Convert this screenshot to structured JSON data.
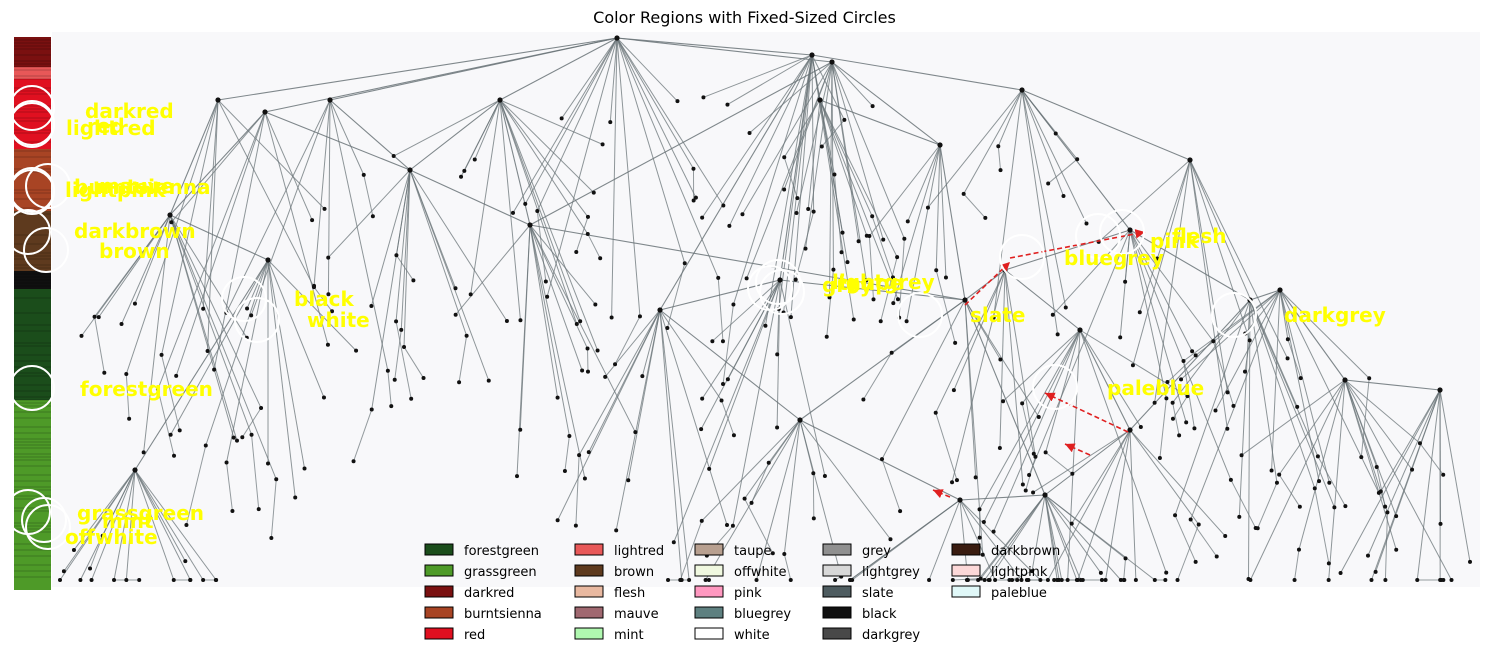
{
  "chart_data": {
    "type": "network",
    "title": "Color Regions with Fixed-Sized Circles",
    "regions": [
      {
        "name": "darkred"
      },
      {
        "name": "red"
      },
      {
        "name": "lightred"
      },
      {
        "name": "burntsienna"
      },
      {
        "name": "mauve"
      },
      {
        "name": "lightpink"
      },
      {
        "name": "darkbrown"
      },
      {
        "name": "brown"
      },
      {
        "name": "black"
      },
      {
        "name": "white"
      },
      {
        "name": "forestgreen"
      },
      {
        "name": "grassgreen"
      },
      {
        "name": "mint"
      },
      {
        "name": "offwhite"
      },
      {
        "name": "lightgrey"
      },
      {
        "name": "grey"
      },
      {
        "name": "taupe"
      },
      {
        "name": "slate"
      },
      {
        "name": "bluegrey"
      },
      {
        "name": "pink"
      },
      {
        "name": "flesh"
      },
      {
        "name": "darkgrey"
      },
      {
        "name": "paleblue"
      }
    ],
    "legend": {
      "placement": "bottom-center",
      "columns": 5,
      "entries": [
        {
          "label": "forestgreen",
          "color": "#1b4d1b"
        },
        {
          "label": "grassgreen",
          "color": "#4e9a28"
        },
        {
          "label": "darkred",
          "color": "#7a1010"
        },
        {
          "label": "burntsienna",
          "color": "#a84424"
        },
        {
          "label": "red",
          "color": "#e01020"
        },
        {
          "label": "lightred",
          "color": "#e85858"
        },
        {
          "label": "brown",
          "color": "#5e3a1e"
        },
        {
          "label": "flesh",
          "color": "#e8b8a0"
        },
        {
          "label": "mauve",
          "color": "#a06870"
        },
        {
          "label": "mint",
          "color": "#b0f8b0"
        },
        {
          "label": "taupe",
          "color": "#b8a090"
        },
        {
          "label": "offwhite",
          "color": "#f0f8e0"
        },
        {
          "label": "pink",
          "color": "#ff98c0"
        },
        {
          "label": "bluegrey",
          "color": "#5e8080"
        },
        {
          "label": "white",
          "color": "#ffffff"
        },
        {
          "label": "grey",
          "color": "#909090"
        },
        {
          "label": "lightgrey",
          "color": "#d8d8d8"
        },
        {
          "label": "slate",
          "color": "#4e5c60"
        },
        {
          "label": "black",
          "color": "#101010"
        },
        {
          "label": "darkgrey",
          "color": "#484848"
        },
        {
          "label": "darkbrown",
          "color": "#3a1c10"
        },
        {
          "label": "lightpink",
          "color": "#fcd8d8"
        },
        {
          "label": "paleblue",
          "color": "#e0f8f8"
        }
      ]
    },
    "label_color": "#ffff00",
    "circle_color": "#ffffff",
    "edge_color": "#6a7478",
    "arrow_color": "#e02020",
    "background_color": "#f8f8fa"
  }
}
